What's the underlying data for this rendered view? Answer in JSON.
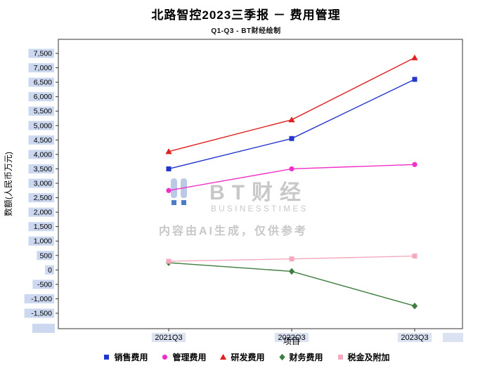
{
  "title": "北路智控2023三季报 － 费用管理",
  "subtitle": "Q1-Q3 - BT财经绘制",
  "watermark": {
    "brand": "BT财经",
    "brand_sub": "BUSINESSTIMES",
    "notice": "内容由AI生成，仅供参考"
  },
  "chart_data": {
    "type": "line",
    "title": "北路智控2023三季报 － 费用管理",
    "subtitle": "Q1-Q3 - BT财经绘制",
    "categories": [
      "2021Q3",
      "2022Q3",
      "2023Q3"
    ],
    "series": [
      {
        "name": "销售费用",
        "color": "#2336cc",
        "marker": "square",
        "values": [
          3500,
          4550,
          6600
        ]
      },
      {
        "name": "管理费用",
        "color": "#f030c8",
        "marker": "circle",
        "values": [
          2750,
          3500,
          3650
        ]
      },
      {
        "name": "研发费用",
        "color": "#e02020",
        "marker": "triangle",
        "values": [
          4100,
          5200,
          7350
        ]
      },
      {
        "name": "财务费用",
        "color": "#3e7e3e",
        "marker": "diamond",
        "values": [
          250,
          -50,
          -1250
        ]
      },
      {
        "name": "税金及附加",
        "color": "#f6a9bd",
        "marker": "square",
        "values": [
          300,
          380,
          480
        ]
      }
    ],
    "xlabel": "项目",
    "ylabel": "数额(人民币万元)",
    "ylim": [
      -1500,
      7500
    ],
    "ytick_step": 500,
    "grid": false,
    "legend_position": "bottom"
  },
  "colors": {
    "axis": "#333333",
    "tick_label_bg": "#ccd8ef",
    "xtick_label_bg": "#dbe3f3",
    "watermark_text": "#c8c8c8",
    "watermark_bar_light": "#b9c9e6",
    "watermark_bar_dark": "#4d7cc7"
  }
}
